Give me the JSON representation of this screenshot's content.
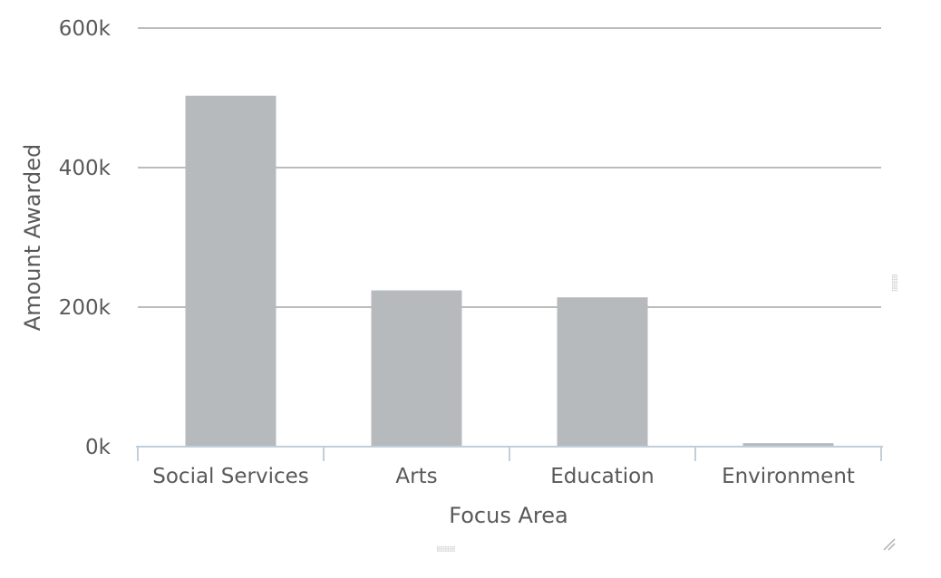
{
  "chart_data": {
    "type": "bar",
    "title": "",
    "xlabel": "Focus Area",
    "ylabel": "Amount Awarded",
    "categories": [
      "Social Services",
      "Arts",
      "Education",
      "Environment"
    ],
    "values": [
      503000,
      224000,
      214000,
      5000
    ],
    "ylim": [
      0,
      600000
    ],
    "yticks": [
      0,
      200000,
      400000,
      600000
    ],
    "ytick_labels": [
      "0k",
      "200k",
      "400k",
      "600k"
    ],
    "grid": true,
    "legend": "none",
    "bar_color": "#b7babd",
    "grid_color": "#a6a6a6",
    "axis_color": "#c0cfdc",
    "text_color": "#595959"
  }
}
